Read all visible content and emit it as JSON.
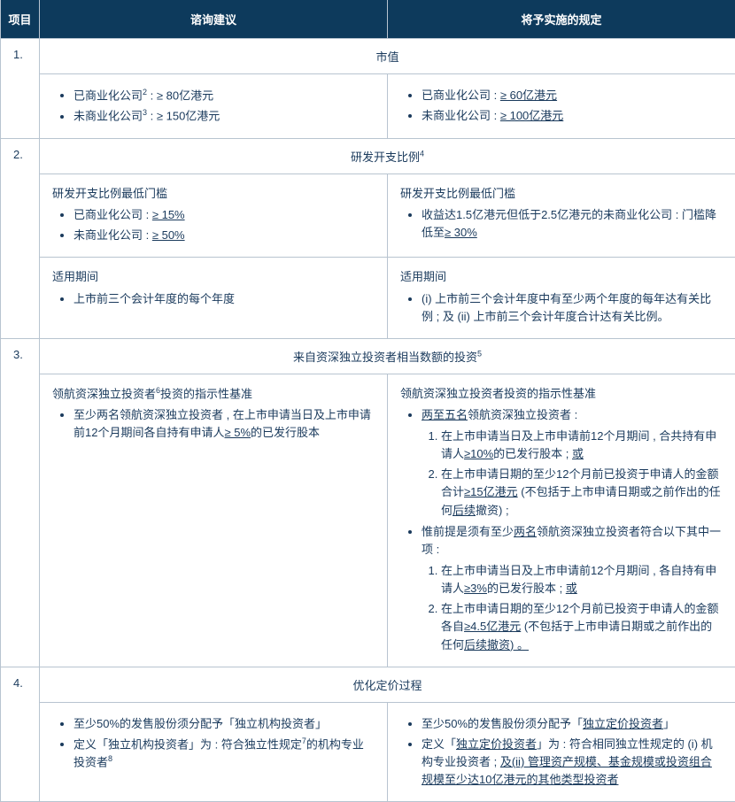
{
  "header": {
    "col1": "项目",
    "col2": "谘询建议",
    "col3": "将予实施的规定"
  },
  "rows": [
    {
      "num": "1.",
      "title": "市值",
      "left": {
        "bullets": [
          {
            "segs": [
              {
                "t": "已商业化公司"
              },
              {
                "t": "2",
                "sup": true
              },
              {
                "t": " : ≥ 80亿港元"
              }
            ]
          },
          {
            "segs": [
              {
                "t": "未商业化公司"
              },
              {
                "t": "3",
                "sup": true
              },
              {
                "t": " : ≥ 150亿港元"
              }
            ]
          }
        ]
      },
      "right": {
        "bullets": [
          {
            "segs": [
              {
                "t": "已商业化公司 : "
              },
              {
                "t": "≥ 60亿港元",
                "u": true
              }
            ]
          },
          {
            "segs": [
              {
                "t": "未商业化公司 : "
              },
              {
                "t": "≥ 100亿港元",
                "u": true
              }
            ]
          }
        ]
      }
    },
    {
      "num": "2.",
      "title_segs": [
        {
          "t": "研发开支比例"
        },
        {
          "t": "4",
          "sup": true
        }
      ],
      "left_blocks": [
        {
          "head": "研发开支比例最低门槛",
          "bullets": [
            {
              "segs": [
                {
                  "t": "已商业化公司 : "
                },
                {
                  "t": "≥ 15%",
                  "u": true
                }
              ]
            },
            {
              "segs": [
                {
                  "t": "未商业化公司 : "
                },
                {
                  "t": "≥ 50%",
                  "u": true
                }
              ]
            }
          ]
        }
      ],
      "right_blocks": [
        {
          "head": "研发开支比例最低门槛",
          "bullets": [
            {
              "segs": [
                {
                  "t": "收益达1.5亿港元但低于2.5亿港元的未商业化公司 : 门槛降低至"
                },
                {
                  "t": "≥ 30%",
                  "u": true
                }
              ]
            }
          ]
        }
      ],
      "left_blocks2": [
        {
          "head": "适用期间",
          "bullets": [
            {
              "segs": [
                {
                  "t": "上市前三个会计年度的每个年度"
                }
              ]
            }
          ]
        }
      ],
      "right_blocks2": [
        {
          "head": "适用期间",
          "bullets": [
            {
              "segs": [
                {
                  "t": "(i) 上市前三个会计年度中有至少两个年度的每年达有关比例 ; 及 (ii) 上市前三个会计年度合计达有关比例。"
                }
              ]
            }
          ]
        }
      ]
    },
    {
      "num": "3.",
      "title_segs": [
        {
          "t": "来自资深独立投资者相当数额的投资"
        },
        {
          "t": "5",
          "sup": true
        }
      ],
      "left_blocks": [
        {
          "head_segs": [
            {
              "t": "领航资深独立投资者"
            },
            {
              "t": "6",
              "sup": true
            },
            {
              "t": "投资的指示性基准"
            }
          ],
          "bullets": [
            {
              "segs": [
                {
                  "t": "至少两名领航资深独立投资者 , 在上市申请当日及上市申请前12个月期间各自持有申请人"
                },
                {
                  "t": "≥ 5%",
                  "u": true
                },
                {
                  "t": "的已发行股本"
                }
              ]
            }
          ]
        }
      ],
      "right_blocks": [
        {
          "head": "领航资深独立投资者投资的指示性基准",
          "bullets": [
            {
              "segs": [
                {
                  "t": "两至五名",
                  "u": true
                },
                {
                  "t": "领航资深独立投资者 :"
                }
              ],
              "ol": [
                {
                  "segs": [
                    {
                      "t": "在上市申请当日及上市申请前12个月期间 , 合共持有申请人"
                    },
                    {
                      "t": "≥10%",
                      "u": true
                    },
                    {
                      "t": "的已发行股本 ; "
                    },
                    {
                      "t": "或",
                      "u": true
                    }
                  ]
                },
                {
                  "segs": [
                    {
                      "t": "在上市申请日期的至少12个月前已投资于申请人的金额合计"
                    },
                    {
                      "t": "≥15亿港元",
                      "u": true
                    },
                    {
                      "t": " (不包括于上市申请日期或之前作出的任何"
                    },
                    {
                      "t": "后续",
                      "u": true
                    },
                    {
                      "t": "撤资) ;"
                    }
                  ]
                }
              ]
            },
            {
              "segs": [
                {
                  "t": "惟前提是须有至少"
                },
                {
                  "t": "两名",
                  "u": true
                },
                {
                  "t": "领航资深独立投资者符合以下其中一项 :"
                }
              ],
              "ol": [
                {
                  "segs": [
                    {
                      "t": "在上市申请当日及上市申请前12个月期间 , 各自持有申请人"
                    },
                    {
                      "t": "≥3%",
                      "u": true
                    },
                    {
                      "t": "的已发行股本 ; "
                    },
                    {
                      "t": "或",
                      "u": true
                    }
                  ]
                },
                {
                  "segs": [
                    {
                      "t": "在上市申请日期的至少12个月前已投资于申请人的金额各自"
                    },
                    {
                      "t": "≥4.5亿港元",
                      "u": true
                    },
                    {
                      "t": " (不包括于上市申请日期或之前作出的任何"
                    },
                    {
                      "t": "后续撤资) 。",
                      "u": true
                    }
                  ]
                }
              ]
            }
          ]
        }
      ]
    },
    {
      "num": "4.",
      "title": "优化定价过程",
      "left": {
        "bullets": [
          {
            "segs": [
              {
                "t": "至少50%的发售股份须分配予「独立机构投资者」"
              }
            ]
          },
          {
            "segs": [
              {
                "t": "定义「独立机构投资者」为 : 符合独立性规定"
              },
              {
                "t": "7",
                "sup": true
              },
              {
                "t": "的机构专业投资者"
              },
              {
                "t": "8",
                "sup": true
              }
            ]
          }
        ]
      },
      "right": {
        "bullets": [
          {
            "segs": [
              {
                "t": "至少50%的发售股份须分配予「"
              },
              {
                "t": "独立定价投资者",
                "u": true
              },
              {
                "t": "」"
              }
            ]
          },
          {
            "segs": [
              {
                "t": "定义「"
              },
              {
                "t": "独立定价投资者",
                "u": true
              },
              {
                "t": "」为 : 符合相同独立性规定的 (i) 机构专业投资者 ; "
              },
              {
                "t": "及(ii) 管理资产规模、基金规模或投资组合规模至少达10亿港元的其他类型投资者",
                "u": true
              }
            ]
          }
        ]
      }
    }
  ]
}
